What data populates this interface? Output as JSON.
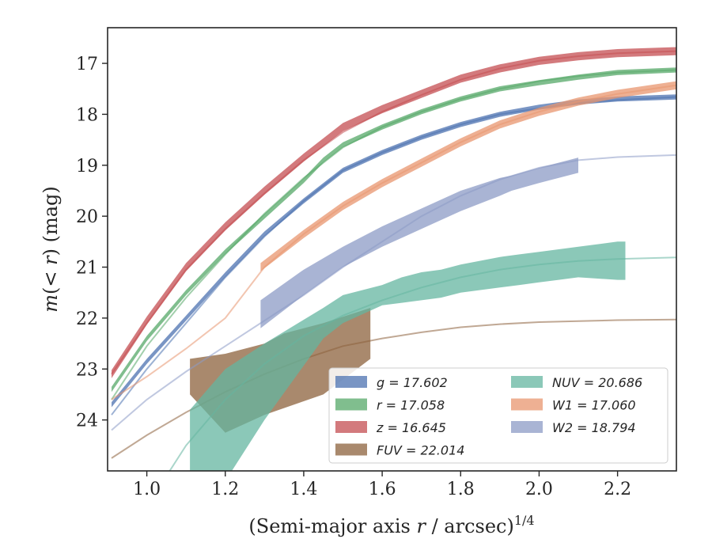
{
  "chart_data": {
    "type": "line",
    "xlabel": "(Semi-major axis r / arcsec)^1/4",
    "ylabel": "m(< r) (mag)",
    "xlim": [
      0.9,
      2.35
    ],
    "ylim": [
      25.0,
      16.3
    ],
    "y_inverted": true,
    "xticks": [
      1.0,
      1.2,
      1.4,
      1.6,
      1.8,
      2.0,
      2.2
    ],
    "xtick_labels": [
      "1.0",
      "1.2",
      "1.4",
      "1.6",
      "1.8",
      "2.0",
      "2.2"
    ],
    "yticks": [
      17,
      18,
      19,
      20,
      21,
      22,
      23,
      24
    ],
    "ytick_labels": [
      "17",
      "18",
      "19",
      "20",
      "21",
      "22",
      "23",
      "24"
    ],
    "grid": false,
    "legend_position": "bottom-right",
    "legend_columns": 2,
    "series": [
      {
        "name": "g = 17.602",
        "color": "#4c72b0",
        "model_x": [
          0.91,
          1.0,
          1.1,
          1.2,
          1.3,
          1.4,
          1.5,
          1.6,
          1.7,
          1.8,
          1.9,
          2.0,
          2.1,
          2.2,
          2.35
        ],
        "model_y": [
          23.9,
          23.0,
          22.1,
          21.2,
          20.4,
          19.7,
          19.1,
          18.75,
          18.45,
          18.2,
          18.0,
          17.88,
          17.78,
          17.72,
          17.66
        ],
        "band_x": [
          0.91,
          1.0,
          1.1,
          1.2,
          1.3,
          1.4,
          1.45,
          1.5,
          1.6,
          1.7,
          1.8,
          1.9,
          2.0,
          2.1,
          2.2,
          2.35
        ],
        "band_y": [
          23.7,
          22.85,
          22.0,
          21.15,
          20.35,
          19.7,
          19.4,
          19.1,
          18.75,
          18.45,
          18.2,
          18.0,
          17.86,
          17.76,
          17.7,
          17.66
        ],
        "band_halfwidth": 0.05
      },
      {
        "name": "r = 17.058",
        "color": "#55a868",
        "model_x": [
          0.91,
          1.0,
          1.1,
          1.2,
          1.3,
          1.4,
          1.5,
          1.6,
          1.7,
          1.8,
          1.9,
          2.0,
          2.1,
          2.2,
          2.35
        ],
        "model_y": [
          23.6,
          22.55,
          21.6,
          20.75,
          19.95,
          19.25,
          18.65,
          18.25,
          17.95,
          17.7,
          17.5,
          17.35,
          17.25,
          17.18,
          17.13
        ],
        "band_x": [
          0.91,
          1.0,
          1.1,
          1.2,
          1.3,
          1.4,
          1.45,
          1.5,
          1.6,
          1.7,
          1.8,
          1.9,
          2.0,
          2.1,
          2.2,
          2.35
        ],
        "band_y": [
          23.4,
          22.4,
          21.5,
          20.7,
          20.0,
          19.3,
          18.9,
          18.6,
          18.25,
          17.95,
          17.7,
          17.5,
          17.38,
          17.27,
          17.18,
          17.13
        ],
        "band_halfwidth": 0.05
      },
      {
        "name": "z = 16.645",
        "color": "#c44e52",
        "model_x": [
          0.91,
          1.0,
          1.1,
          1.2,
          1.3,
          1.4,
          1.5,
          1.6,
          1.7,
          1.8,
          1.9,
          2.0,
          2.1,
          2.2,
          2.35
        ],
        "model_y": [
          23.1,
          22.1,
          21.05,
          20.25,
          19.55,
          18.9,
          18.35,
          17.95,
          17.62,
          17.32,
          17.1,
          16.95,
          16.86,
          16.8,
          16.76
        ],
        "band_x": [
          0.91,
          1.0,
          1.1,
          1.2,
          1.3,
          1.4,
          1.45,
          1.5,
          1.6,
          1.7,
          1.8,
          1.9,
          2.0,
          2.1,
          2.2,
          2.35
        ],
        "band_y": [
          23.1,
          22.05,
          21.0,
          20.2,
          19.5,
          18.85,
          18.55,
          18.25,
          17.9,
          17.6,
          17.3,
          17.1,
          16.95,
          16.86,
          16.8,
          16.76
        ],
        "band_halfwidth": 0.08
      },
      {
        "name": "FUV = 22.014",
        "color": "#8c613c",
        "model_x": [
          0.91,
          1.0,
          1.1,
          1.2,
          1.3,
          1.4,
          1.5,
          1.6,
          1.7,
          1.8,
          1.9,
          2.0,
          2.1,
          2.2,
          2.35
        ],
        "model_y": [
          24.75,
          24.3,
          23.85,
          23.45,
          23.1,
          22.8,
          22.55,
          22.4,
          22.28,
          22.18,
          22.12,
          22.08,
          22.06,
          22.04,
          22.03
        ],
        "band_x": [
          1.11,
          1.2,
          1.3,
          1.35,
          1.45,
          1.57
        ],
        "band_upper": [
          22.8,
          22.7,
          22.5,
          22.3,
          22.1,
          21.8
        ],
        "band_lower": [
          23.5,
          23.3,
          23.0,
          22.8,
          22.6,
          22.8
        ],
        "band_lower_x": [
          1.11,
          1.2,
          1.3,
          1.35,
          1.45,
          1.57
        ],
        "band_bottom_x": [
          1.11,
          1.2,
          1.3,
          1.45,
          1.57
        ],
        "band_bottom": [
          23.5,
          24.25,
          23.9,
          23.5,
          22.8
        ]
      },
      {
        "name": "NUV = 20.686",
        "color": "#64b5a0",
        "model_x": [
          1.0,
          1.05,
          1.1,
          1.2,
          1.3,
          1.4,
          1.5,
          1.6,
          1.7,
          1.8,
          1.9,
          2.0,
          2.1,
          2.2,
          2.35
        ],
        "model_y": [
          25.8,
          25.1,
          24.5,
          23.6,
          22.9,
          22.35,
          21.95,
          21.65,
          21.4,
          21.2,
          21.05,
          20.95,
          20.88,
          20.84,
          20.81
        ],
        "band_x": [
          1.11,
          1.2,
          1.3,
          1.45,
          1.5,
          1.6,
          1.65,
          1.7,
          1.75,
          1.8,
          1.9,
          1.95,
          2.0,
          2.05,
          2.1,
          2.2,
          2.22
        ],
        "band_upper": [
          23.8,
          23.0,
          22.5,
          21.8,
          21.55,
          21.35,
          21.2,
          21.1,
          21.05,
          20.95,
          20.8,
          20.75,
          20.7,
          20.65,
          20.6,
          20.5,
          20.5
        ],
        "band_lower": [
          26.0,
          25.2,
          24.0,
          22.4,
          22.1,
          21.75,
          21.7,
          21.65,
          21.6,
          21.5,
          21.4,
          21.35,
          21.3,
          21.25,
          21.2,
          21.25,
          21.25
        ]
      },
      {
        "name": "W1 = 17.060",
        "color": "#e8956f",
        "model_x": [
          0.91,
          1.0,
          1.1,
          1.2,
          1.3,
          1.4,
          1.5,
          1.6,
          1.7,
          1.8,
          1.9,
          2.0,
          2.1,
          2.2,
          2.35
        ],
        "model_y": [
          23.6,
          23.15,
          22.6,
          22.0,
          21.0,
          20.35,
          19.8,
          19.35,
          18.95,
          18.55,
          18.2,
          17.95,
          17.75,
          17.6,
          17.43
        ],
        "band_x": [
          1.29,
          1.4,
          1.5,
          1.6,
          1.7,
          1.8,
          1.9,
          2.0,
          2.1,
          2.2,
          2.35
        ],
        "band_y": [
          21.0,
          20.35,
          19.8,
          19.35,
          18.95,
          18.55,
          18.2,
          17.95,
          17.75,
          17.6,
          17.43
        ],
        "band_halfwidth": 0.08
      },
      {
        "name": "W2 = 18.794",
        "color": "#8c9bc6",
        "model_x": [
          0.91,
          1.0,
          1.1,
          1.2,
          1.3,
          1.4,
          1.5,
          1.6,
          1.7,
          1.8,
          1.9,
          2.0,
          2.1,
          2.2,
          2.35
        ],
        "model_y": [
          24.2,
          23.6,
          23.05,
          22.55,
          22.05,
          21.55,
          21.0,
          20.5,
          20.0,
          19.6,
          19.28,
          19.05,
          18.9,
          18.84,
          18.8
        ],
        "band_x": [
          1.29,
          1.4,
          1.5,
          1.6,
          1.7,
          1.8,
          1.9,
          1.93,
          2.0,
          2.1
        ],
        "band_upper": [
          21.65,
          21.05,
          20.6,
          20.2,
          19.85,
          19.5,
          19.25,
          19.2,
          19.05,
          18.85
        ],
        "band_lower": [
          22.2,
          21.55,
          21.0,
          20.6,
          20.25,
          19.9,
          19.6,
          19.5,
          19.35,
          19.15
        ]
      }
    ]
  }
}
